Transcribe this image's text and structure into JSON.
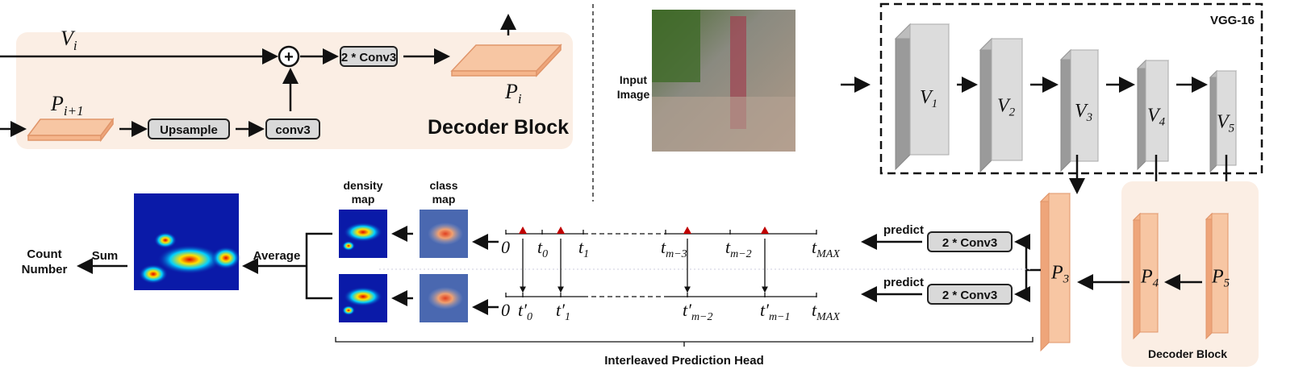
{
  "decoder_detail": {
    "v_i": "V",
    "v_i_sub": "i",
    "p_i1": "P",
    "p_i1_sub": "i+1",
    "p_i": "P",
    "p_i_sub": "i",
    "plus": "+",
    "conv_box": "2 * Conv3",
    "upsample": "Upsample",
    "conv3": "conv3",
    "title": "Decoder Block"
  },
  "backbone": {
    "input_label_1": "Input",
    "input_label_2": "Image",
    "title": "VGG-16",
    "layers": [
      {
        "n": "V",
        "s": "1"
      },
      {
        "n": "V",
        "s": "2"
      },
      {
        "n": "V",
        "s": "3"
      },
      {
        "n": "V",
        "s": "4"
      },
      {
        "n": "V",
        "s": "5"
      }
    ]
  },
  "decoder": {
    "features": [
      {
        "n": "P",
        "s": "3"
      },
      {
        "n": "P",
        "s": "4"
      },
      {
        "n": "P",
        "s": "5"
      }
    ],
    "title": "Decoder Block",
    "conv_box": "2 * Conv3",
    "predict": "predict"
  },
  "head": {
    "top_ticks": [
      "0",
      "t",
      "t",
      "t",
      "t",
      "t"
    ],
    "top_subs": [
      "",
      "0",
      "1",
      "m−3",
      "m−2",
      "MAX"
    ],
    "bottom_ticks": [
      "0",
      "t′",
      "t′",
      "t′",
      "t′",
      "t"
    ],
    "bottom_subs": [
      "",
      "0",
      "1",
      "m−2",
      "m−1",
      "MAX"
    ],
    "density_map": [
      "density",
      "map"
    ],
    "class_map": [
      "class",
      "map"
    ],
    "average": "Average",
    "sum": "Sum",
    "count": [
      "Count",
      "Number"
    ],
    "caption": "Interleaved Prediction Head",
    "marker_color": "#c00000"
  },
  "colors": {
    "decoder_bg": "#fbeee4",
    "feature": "#f7c6a3",
    "feature_edge": "#e0956a",
    "layer": "#d9d9d9"
  }
}
